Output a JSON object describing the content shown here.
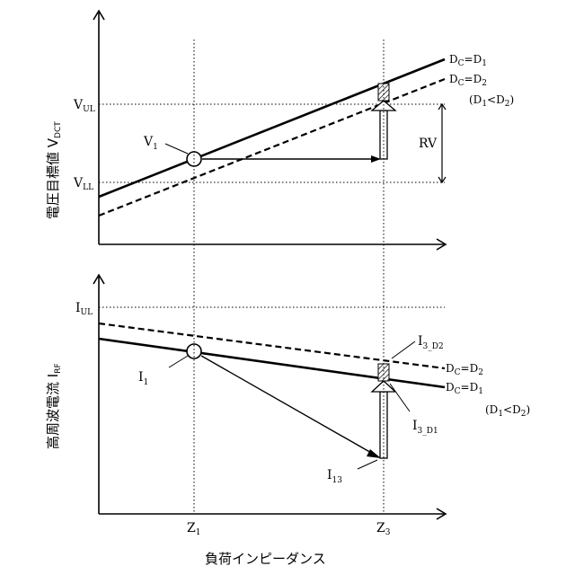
{
  "top_panel": {
    "y_axis_label_main": "電圧目標値 V",
    "y_axis_label_sub": "DCT",
    "tick_vul_main": "V",
    "tick_vul_sub": "UL",
    "tick_vll_main": "V",
    "tick_vll_sub": "LL",
    "point_label_main": "V",
    "point_label_sub": "1",
    "line1_label": {
      "D": "D",
      "s1": "C",
      "eq": "=D",
      "s2": "1"
    },
    "line2_label": {
      "D": "D",
      "s1": "C",
      "eq": "=D",
      "s2": "2"
    },
    "condition": {
      "a": "(D",
      "s1": "1",
      "lt": "<D",
      "s2": "2",
      "b": ")"
    },
    "range_label": "RV"
  },
  "bottom_panel": {
    "y_axis_label_main": "高周波電流 I",
    "y_axis_label_sub": "RF",
    "tick_iul_main": "I",
    "tick_iul_sub": "UL",
    "point_label_main": "I",
    "point_label_sub": "1",
    "i13_main": "I",
    "i13_sub": "13",
    "i3d2_main": "I",
    "i3d2_sub": "3_D2",
    "i3d1_main": "I",
    "i3d1_sub": "3_D1",
    "line1_label": {
      "D": "D",
      "s1": "C",
      "eq": "=D",
      "s2": "1"
    },
    "line2_label": {
      "D": "D",
      "s1": "C",
      "eq": "=D",
      "s2": "2"
    },
    "condition": {
      "a": "(D",
      "s1": "1",
      "lt": "<D",
      "s2": "2",
      "b": ")"
    }
  },
  "x_axis": {
    "z1_main": "Z",
    "z1_sub": "1",
    "z3_main": "Z",
    "z3_sub": "3",
    "label": "負荷インピーダンス"
  }
}
